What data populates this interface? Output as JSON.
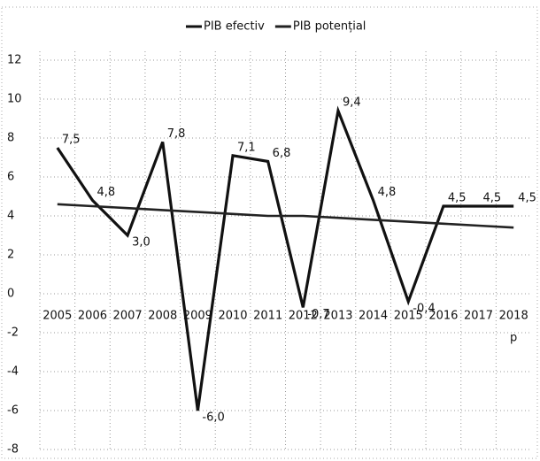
{
  "chart_data": {
    "type": "line",
    "categories": [
      "2005",
      "2006",
      "2007",
      "2008",
      "2009",
      "2010",
      "2011",
      "2012",
      "2013",
      "2014",
      "2015",
      "2016",
      "2017",
      "2018"
    ],
    "series": [
      {
        "name": "PIB efectiv",
        "color": "#111111",
        "values": [
          7.5,
          4.8,
          3.0,
          7.8,
          -6.0,
          7.1,
          6.8,
          -0.7,
          9.4,
          4.8,
          -0.4,
          4.5,
          4.5,
          4.5
        ],
        "value_labels": [
          "7,5",
          "4,8",
          "3,0",
          "7,8",
          "-6,0",
          "7,1",
          "6,8",
          "-0,7",
          "9,4",
          "4,8",
          "-0,4",
          "4,5",
          "4,5",
          "4,5"
        ]
      },
      {
        "name": "PIB potențial",
        "color": "#222222",
        "values": [
          4.6,
          4.5,
          4.4,
          4.3,
          4.2,
          4.1,
          4.0,
          4.0,
          3.9,
          3.8,
          3.7,
          3.6,
          3.5,
          3.4
        ]
      }
    ],
    "annotations": [
      "p"
    ],
    "ylim": [
      -8,
      12
    ],
    "yticks": [
      -8,
      -6,
      -4,
      -2,
      0,
      2,
      4,
      6,
      8,
      10,
      12
    ],
    "grid": true,
    "legend": "top"
  }
}
